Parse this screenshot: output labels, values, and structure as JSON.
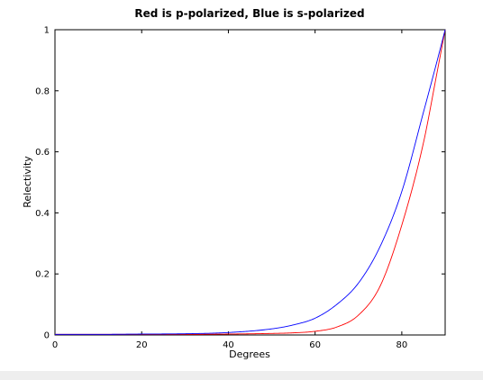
{
  "chart_data": {
    "type": "line",
    "title": "Red is p-polarized, Blue is s-polarized",
    "xlabel": "Degrees",
    "ylabel": "Relectivity",
    "xlim": [
      0,
      90
    ],
    "ylim": [
      0,
      1
    ],
    "xticks": [
      0,
      20,
      40,
      60,
      80
    ],
    "yticks": [
      0,
      0.2,
      0.4,
      0.6,
      0.8,
      1
    ],
    "xtick_labels": [
      "0",
      "20",
      "40",
      "60",
      "80"
    ],
    "ytick_labels": [
      "0",
      "0.2",
      "0.4",
      "0.6",
      "0.8",
      "1"
    ],
    "grid": false,
    "series": [
      {
        "color": "#ff0000",
        "x": [
          0,
          10,
          20,
          30,
          40,
          50,
          55,
          60,
          65,
          70,
          75,
          80,
          85,
          88,
          90
        ],
        "y": [
          0.002,
          0.002,
          0.002,
          0.002,
          0.003,
          0.005,
          0.007,
          0.012,
          0.026,
          0.065,
          0.16,
          0.36,
          0.63,
          0.85,
          1.0
        ]
      },
      {
        "color": "#0000ff",
        "x": [
          0,
          10,
          20,
          30,
          40,
          50,
          55,
          60,
          65,
          70,
          75,
          80,
          85,
          88,
          90
        ],
        "y": [
          0.002,
          0.002,
          0.003,
          0.004,
          0.008,
          0.02,
          0.033,
          0.055,
          0.1,
          0.17,
          0.29,
          0.47,
          0.73,
          0.89,
          1.0
        ]
      }
    ]
  }
}
